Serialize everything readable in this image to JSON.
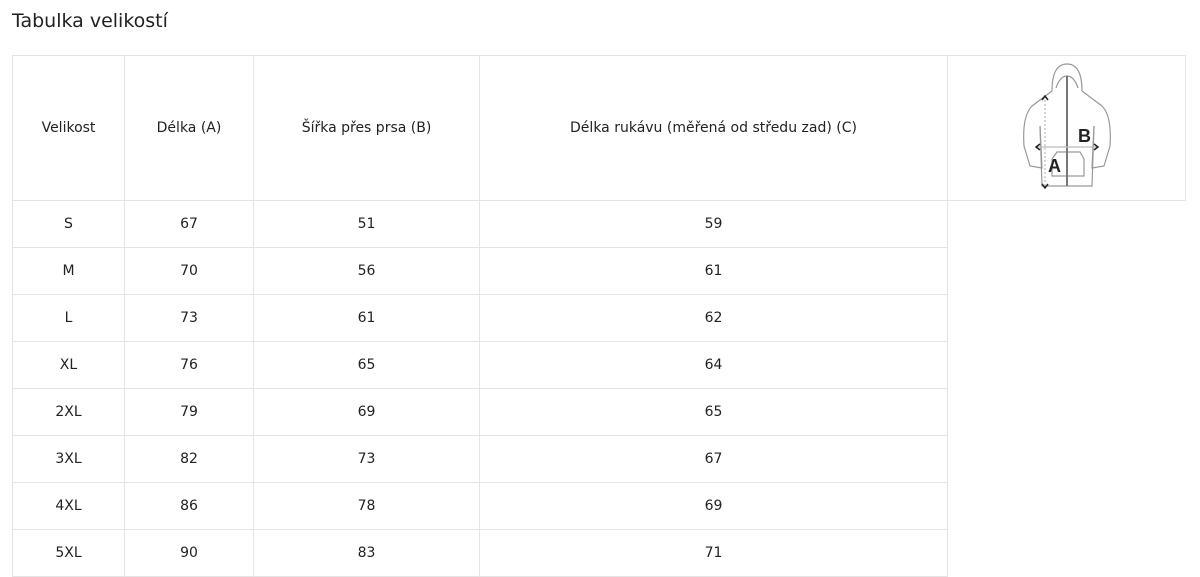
{
  "title": "Tabulka velikostí",
  "headers": [
    "Velikost",
    "Délka (A)",
    "Šířka přes prsa (B)",
    "Délka rukávu (měřená od středu zad) (C)"
  ],
  "rows": [
    [
      "S",
      "67",
      "51",
      "59"
    ],
    [
      "M",
      "70",
      "56",
      "61"
    ],
    [
      "L",
      "73",
      "61",
      "62"
    ],
    [
      "XL",
      "76",
      "65",
      "64"
    ],
    [
      "2XL",
      "79",
      "69",
      "65"
    ],
    [
      "3XL",
      "82",
      "73",
      "67"
    ],
    [
      "4XL",
      "86",
      "78",
      "69"
    ],
    [
      "5XL",
      "90",
      "83",
      "71"
    ]
  ],
  "diagram": {
    "label_a": "A",
    "label_b": "B"
  }
}
